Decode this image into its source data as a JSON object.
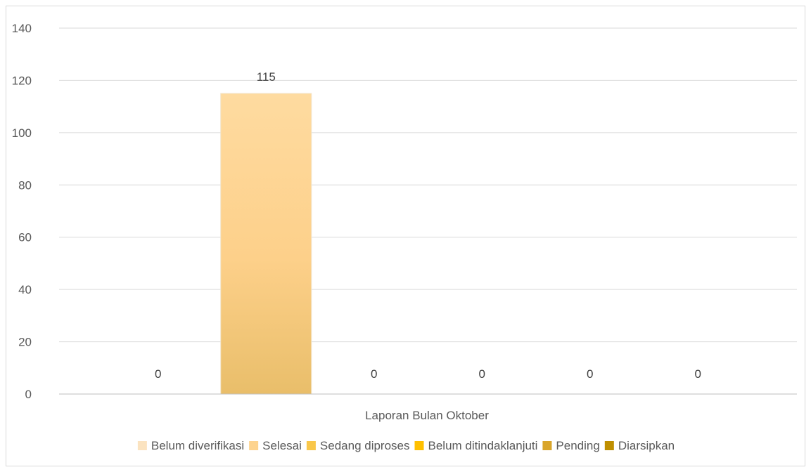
{
  "chart_data": {
    "type": "bar",
    "title": "",
    "xlabel": "Laporan Bulan Oktober",
    "ylabel": "",
    "categories": [
      "Laporan Bulan Oktober"
    ],
    "ylim": [
      0,
      140
    ],
    "yticks": [
      "0",
      "20",
      "40",
      "60",
      "80",
      "100",
      "120",
      "140"
    ],
    "grid": true,
    "legend_position": "bottom",
    "series": [
      {
        "name": "Belum diverifikasi",
        "values": [
          0
        ],
        "label": "0",
        "color": "#fbe3c0"
      },
      {
        "name": "Selesai",
        "values": [
          115
        ],
        "label": "115",
        "color": "#fdd38e"
      },
      {
        "name": "Sedang diproses",
        "values": [
          0
        ],
        "label": "0",
        "color": "#f9c74a"
      },
      {
        "name": "Belum ditindaklanjuti",
        "values": [
          0
        ],
        "label": "0",
        "color": "#ffc000"
      },
      {
        "name": "Pending",
        "values": [
          0
        ],
        "label": "0",
        "color": "#d9a52a"
      },
      {
        "name": "Diarsipkan",
        "values": [
          0
        ],
        "label": "0",
        "color": "#bf8f00"
      }
    ]
  }
}
